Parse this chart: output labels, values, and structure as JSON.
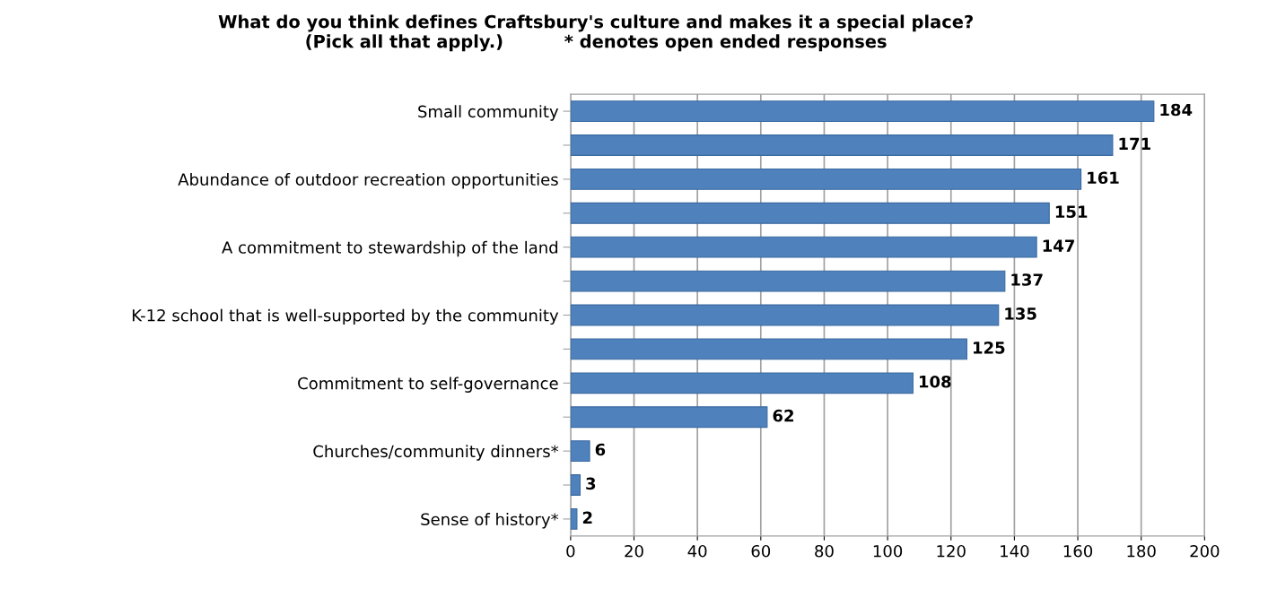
{
  "chart_data": {
    "type": "bar",
    "orientation": "horizontal",
    "title": "What do you think defines Craftsbury's culture and makes it a special place?\n(Pick all that apply.)          * denotes open ended responses",
    "categories": [
      "Small community",
      null,
      "Abundance of outdoor recreation opportunities",
      null,
      "A commitment to stewardship of the land",
      null,
      "K-12 school that is well-supported by the community",
      null,
      "Commitment to self-governance",
      null,
      "Churches/community dinners*",
      null,
      "Sense of history*"
    ],
    "values": [
      184,
      171,
      161,
      151,
      147,
      137,
      135,
      125,
      108,
      62,
      6,
      3,
      2
    ],
    "color": "#4f81bd",
    "xlim": [
      0,
      200
    ],
    "xticks": [
      0,
      20,
      40,
      60,
      80,
      100,
      120,
      140,
      160,
      180,
      200
    ],
    "grid": "x",
    "data_labels": true
  }
}
